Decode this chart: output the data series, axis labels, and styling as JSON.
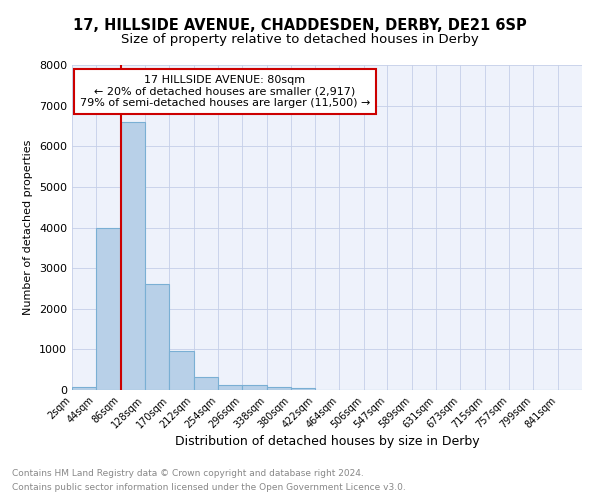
{
  "title": "17, HILLSIDE AVENUE, CHADDESDEN, DERBY, DE21 6SP",
  "subtitle": "Size of property relative to detached houses in Derby",
  "xlabel": "Distribution of detached houses by size in Derby",
  "ylabel": "Number of detached properties",
  "footnote1": "Contains HM Land Registry data © Crown copyright and database right 2024.",
  "footnote2": "Contains public sector information licensed under the Open Government Licence v3.0.",
  "annotation_line1": "17 HILLSIDE AVENUE: 80sqm",
  "annotation_line2": "← 20% of detached houses are smaller (2,917)",
  "annotation_line3": "79% of semi-detached houses are larger (11,500) →",
  "bar_color": "#b8d0e8",
  "bar_edge_color": "#7aafd4",
  "vline_color": "#cc0000",
  "vline_x": 86,
  "categories": [
    "2sqm",
    "44sqm",
    "86sqm",
    "128sqm",
    "170sqm",
    "212sqm",
    "254sqm",
    "296sqm",
    "338sqm",
    "380sqm",
    "422sqm",
    "464sqm",
    "506sqm",
    "547sqm",
    "589sqm",
    "631sqm",
    "673sqm",
    "715sqm",
    "757sqm",
    "799sqm",
    "841sqm"
  ],
  "bin_edges": [
    2,
    44,
    86,
    128,
    170,
    212,
    254,
    296,
    338,
    380,
    422,
    464,
    506,
    547,
    589,
    631,
    673,
    715,
    757,
    799,
    841,
    883
  ],
  "values": [
    75,
    4000,
    6600,
    2620,
    960,
    310,
    130,
    120,
    80,
    60,
    5,
    0,
    0,
    0,
    0,
    0,
    0,
    0,
    0,
    0,
    0
  ],
  "ylim": [
    0,
    8000
  ],
  "yticks": [
    0,
    1000,
    2000,
    3000,
    4000,
    5000,
    6000,
    7000,
    8000
  ],
  "bg_color": "#eef2fb",
  "grid_color": "#c5cfe8",
  "title_fontsize": 10.5,
  "subtitle_fontsize": 9.5,
  "footnote_color": "#888888"
}
